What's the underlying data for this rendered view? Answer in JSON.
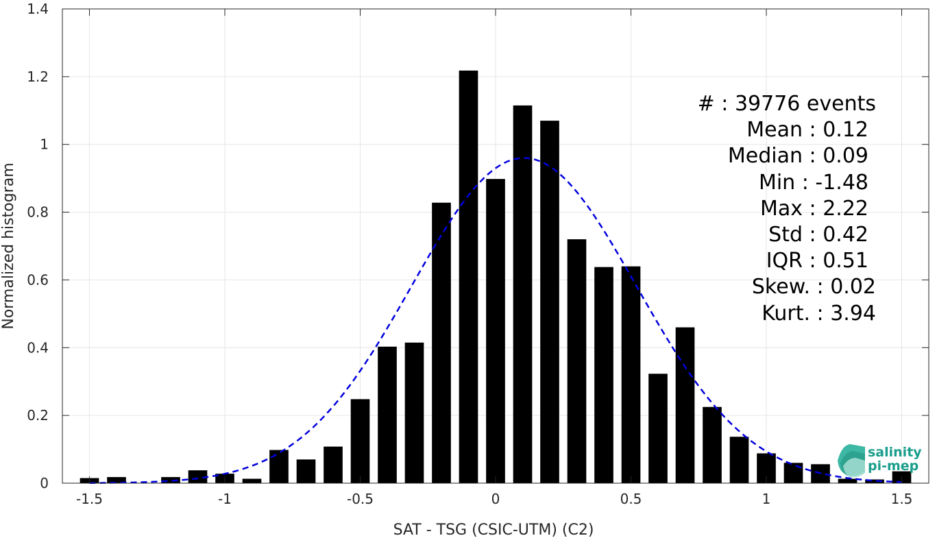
{
  "chart_data": {
    "type": "bar",
    "xlabel": "SAT - TSG (CSIC-UTM) (C2)",
    "ylabel": "Normalized histogram",
    "xlim": [
      -1.6,
      1.6
    ],
    "ylim": [
      0,
      1.4
    ],
    "x_ticks": [
      -1.5,
      -1,
      -0.5,
      0,
      0.5,
      1,
      1.5
    ],
    "x_tick_labels": [
      "-1.5",
      "-1",
      "-0.5",
      "0",
      "0.5",
      "1",
      "1.5"
    ],
    "y_ticks": [
      0,
      0.2,
      0.4,
      0.6,
      0.8,
      1,
      1.2,
      1.4
    ],
    "y_tick_labels": [
      "0",
      "0.2",
      "0.4",
      "0.6",
      "0.8",
      "1",
      "1.2",
      "1.4"
    ],
    "grid": true,
    "bar_color": "#000000",
    "bar_width": 0.07,
    "bars": [
      {
        "x": -1.5,
        "value": 0.015
      },
      {
        "x": -1.4,
        "value": 0.018
      },
      {
        "x": -1.2,
        "value": 0.018
      },
      {
        "x": -1.1,
        "value": 0.038
      },
      {
        "x": -1.0,
        "value": 0.028
      },
      {
        "x": -0.9,
        "value": 0.013
      },
      {
        "x": -0.8,
        "value": 0.098
      },
      {
        "x": -0.7,
        "value": 0.07
      },
      {
        "x": -0.6,
        "value": 0.108
      },
      {
        "x": -0.5,
        "value": 0.248
      },
      {
        "x": -0.4,
        "value": 0.403
      },
      {
        "x": -0.3,
        "value": 0.415
      },
      {
        "x": -0.2,
        "value": 0.828
      },
      {
        "x": -0.1,
        "value": 1.218
      },
      {
        "x": 0.0,
        "value": 0.898
      },
      {
        "x": 0.1,
        "value": 1.115
      },
      {
        "x": 0.2,
        "value": 1.07
      },
      {
        "x": 0.3,
        "value": 0.72
      },
      {
        "x": 0.4,
        "value": 0.638
      },
      {
        "x": 0.5,
        "value": 0.64
      },
      {
        "x": 0.6,
        "value": 0.323
      },
      {
        "x": 0.7,
        "value": 0.46
      },
      {
        "x": 0.8,
        "value": 0.225
      },
      {
        "x": 0.9,
        "value": 0.137
      },
      {
        "x": 1.0,
        "value": 0.088
      },
      {
        "x": 1.1,
        "value": 0.06
      },
      {
        "x": 1.2,
        "value": 0.056
      },
      {
        "x": 1.3,
        "value": 0.013
      },
      {
        "x": 1.4,
        "value": 0.011
      },
      {
        "x": 1.5,
        "value": 0.035
      }
    ],
    "fit_curve": {
      "type": "normal",
      "mean": 0.105,
      "std": 0.415,
      "peak": 0.96,
      "color": "#0000dd",
      "style": "dashed",
      "x_range": [
        -1.5,
        1.5
      ]
    }
  },
  "stats": {
    "lines": [
      "#  : 39776 events",
      "Mean : 0.12",
      "Median : 0.09",
      "Min : -1.48",
      "Max : 2.22",
      "Std : 0.42",
      "IQR : 0.51",
      "Skew. : 0.02",
      "Kurt. : 3.94"
    ]
  },
  "logo": {
    "line1": "salinity",
    "line2": "pi-mep",
    "color": "#1a9e8c"
  }
}
